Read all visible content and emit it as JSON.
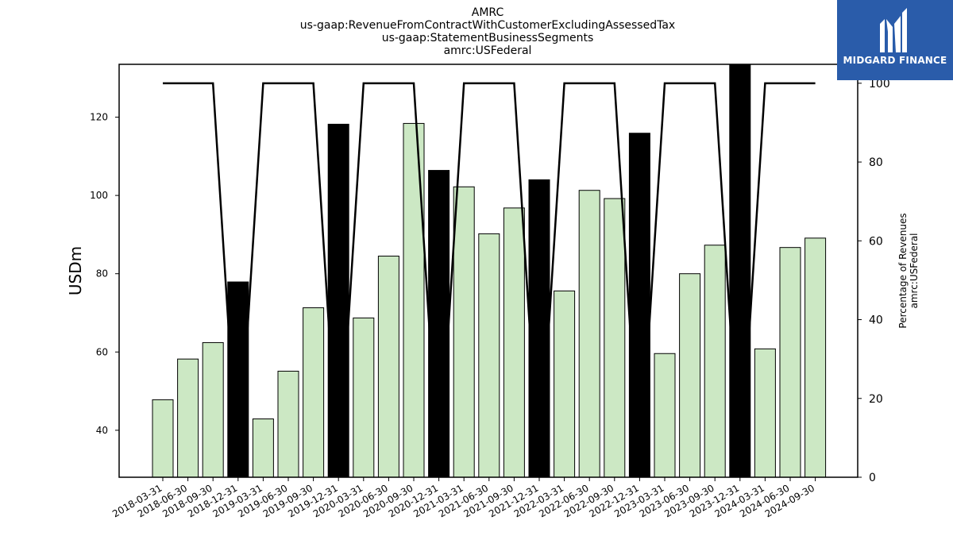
{
  "title": {
    "line1": "AMRC",
    "line2": "us-gaap:RevenueFromContractWithCustomerExcludingAssessedTax",
    "line3": "us-gaap:StatementBusinessSegments",
    "line4": "amrc:USFederal"
  },
  "logo": {
    "text": "MIDGARD FINANCE",
    "bg_color": "#2a5caa"
  },
  "chart_data": {
    "type": "bar",
    "categories": [
      "2018-03-31",
      "2018-06-30",
      "2018-09-30",
      "2018-12-31",
      "2019-03-31",
      "2019-06-30",
      "2019-09-30",
      "2019-12-31",
      "2020-03-31",
      "2020-06-30",
      "2020-09-30",
      "2020-12-31",
      "2021-03-31",
      "2021-06-30",
      "2021-09-30",
      "2021-12-31",
      "2022-03-31",
      "2022-06-30",
      "2022-09-30",
      "2022-12-31",
      "2023-03-31",
      "2023-06-30",
      "2023-09-30",
      "2023-12-31",
      "2024-03-31",
      "2024-06-30",
      "2024-09-30"
    ],
    "series": [
      {
        "axis": "left",
        "values": [
          47.8,
          58.2,
          62.4,
          77.9,
          42.9,
          55.1,
          71.3,
          118.2,
          68.7,
          84.5,
          118.4,
          106.4,
          102.2,
          90.2,
          96.8,
          104.0,
          75.6,
          101.3,
          99.2,
          115.9,
          59.6,
          80.0,
          87.3,
          133.5,
          60.8,
          86.7,
          89.1
        ],
        "highlight": [
          false,
          false,
          false,
          true,
          false,
          false,
          false,
          true,
          false,
          false,
          false,
          true,
          false,
          false,
          false,
          true,
          false,
          false,
          false,
          true,
          false,
          false,
          false,
          true,
          false,
          false,
          false
        ],
        "color": "#cce8c4",
        "highlight_color": "#000000"
      },
      {
        "axis": "right",
        "type": "line",
        "values": [
          100,
          100,
          100,
          0,
          100,
          100,
          100,
          0,
          100,
          100,
          100,
          0,
          100,
          100,
          100,
          0,
          100,
          100,
          100,
          0,
          100,
          100,
          100,
          0,
          100,
          100,
          100
        ],
        "color": "#000000"
      }
    ],
    "ylabel": "USDm",
    "ylabel_right": [
      "Percentage of Revenues",
      "amrc:USFederal"
    ],
    "ylim": [
      28,
      133.5
    ],
    "yticks": [
      40,
      60,
      80,
      100,
      120
    ],
    "ylim_right": [
      0,
      104.8
    ],
    "yticks_right": [
      0,
      20,
      40,
      60,
      80,
      100
    ],
    "grid": false
  }
}
